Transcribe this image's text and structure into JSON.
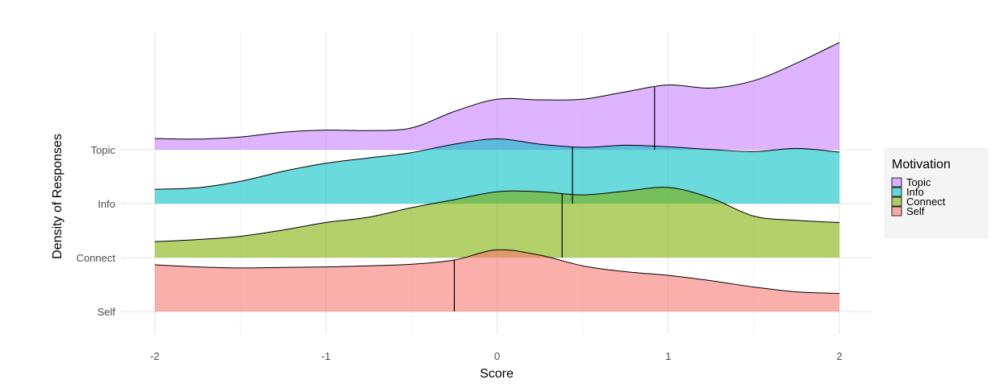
{
  "chart_data": {
    "type": "area",
    "subtype": "ridgeline-density",
    "xlabel": "Score",
    "ylabel": "Density of Responses",
    "xlim": [
      -2,
      2
    ],
    "x_ticks": [
      "-2",
      "-1",
      "0",
      "1",
      "2"
    ],
    "categories": [
      "Self",
      "Connect",
      "Info",
      "Topic"
    ],
    "grid": true,
    "legend": {
      "title": "Motivation",
      "position": "right",
      "entries": [
        "Topic",
        "Info",
        "Connect",
        "Self"
      ]
    },
    "x": [
      -2.0,
      -1.75,
      -1.5,
      -1.25,
      -1.0,
      -0.75,
      -0.5,
      -0.25,
      0.0,
      0.25,
      0.5,
      0.75,
      1.0,
      1.25,
      1.5,
      1.75,
      2.0
    ],
    "series": [
      {
        "name": "Self",
        "color": "#F8766D",
        "mean": -0.25,
        "density": [
          0.88,
          0.84,
          0.82,
          0.83,
          0.84,
          0.86,
          0.89,
          0.97,
          1.16,
          1.06,
          0.86,
          0.75,
          0.68,
          0.58,
          0.46,
          0.37,
          0.34
        ]
      },
      {
        "name": "Connect",
        "color": "#7CAE00",
        "mean": 0.38,
        "density": [
          0.3,
          0.34,
          0.4,
          0.52,
          0.66,
          0.76,
          0.94,
          1.09,
          1.24,
          1.24,
          1.18,
          1.25,
          1.32,
          1.12,
          0.78,
          0.7,
          0.66
        ]
      },
      {
        "name": "Info",
        "color": "#00BFC4",
        "mean": 0.44,
        "density": [
          0.27,
          0.3,
          0.42,
          0.61,
          0.76,
          0.86,
          0.96,
          1.12,
          1.22,
          1.12,
          1.06,
          1.1,
          1.07,
          1.02,
          0.98,
          1.04,
          0.97
        ]
      },
      {
        "name": "Topic",
        "color": "#C77CFF",
        "mean": 0.92,
        "density": [
          0.21,
          0.2,
          0.24,
          0.33,
          0.37,
          0.36,
          0.41,
          0.72,
          0.95,
          0.94,
          0.95,
          1.09,
          1.22,
          1.16,
          1.3,
          1.63,
          2.02
        ]
      }
    ]
  }
}
